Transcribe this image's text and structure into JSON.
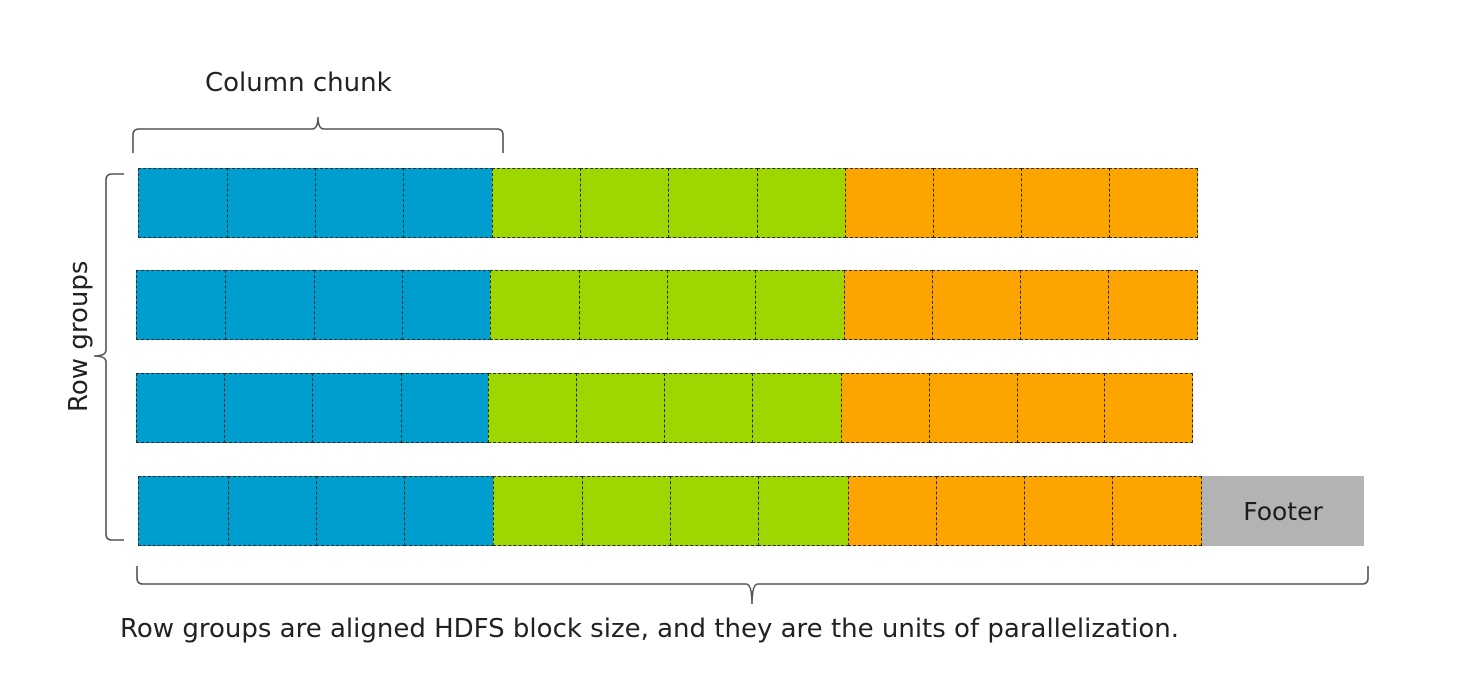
{
  "labels": {
    "column_chunk": "Column chunk",
    "row_groups": "Row groups",
    "caption": "Row groups are aligned HDFS block size, and they are the units of parallelization.",
    "footer": "Footer"
  },
  "colors": {
    "column_1": "#009dcf",
    "column_2": "#9dd600",
    "column_3": "#fca500",
    "footer": "#b3b3b3",
    "bracket": "#555555",
    "divider": "#2a2a2a"
  },
  "structure": {
    "row_group_count": 4,
    "column_chunk_count": 3,
    "pages_per_column_chunk": 4
  }
}
